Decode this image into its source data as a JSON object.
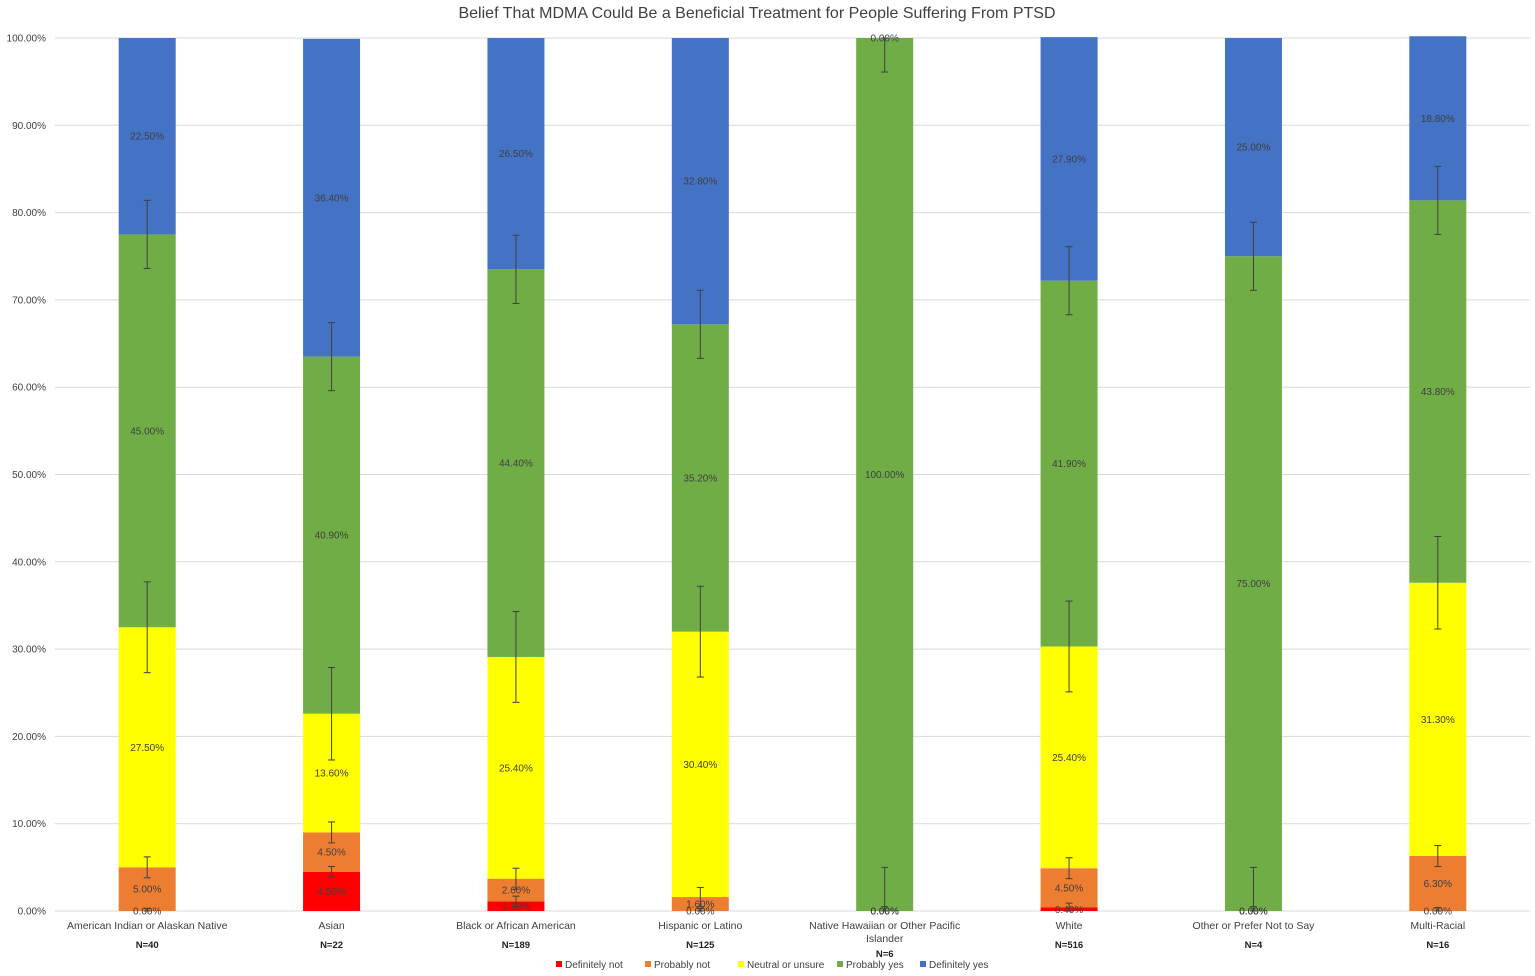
{
  "chart_data": {
    "type": "bar",
    "stacked": true,
    "title": "Belief That MDMA Could Be a Beneficial Treatment for People Suffering From PTSD",
    "xlabel": "",
    "ylabel": "",
    "ylim": [
      0,
      100
    ],
    "yticks": [
      0,
      10,
      20,
      30,
      40,
      50,
      60,
      70,
      80,
      90,
      100
    ],
    "ytick_labels": [
      "0.00%",
      "10.00%",
      "20.00%",
      "30.00%",
      "40.00%",
      "50.00%",
      "60.00%",
      "70.00%",
      "80.00%",
      "90.00%",
      "100.00%"
    ],
    "grid": true,
    "legend_position": "bottom",
    "categories": [
      "American Indian or Alaskan Native",
      "Asian",
      "Black or African American",
      "Hispanic or Latino",
      "Native Hawaiian or Other Pacific Islander",
      "White",
      "Other or Prefer Not to Say",
      "Multi-Racial"
    ],
    "category_label_lines": [
      [
        "American Indian or Alaskan Native"
      ],
      [
        "Asian"
      ],
      [
        "Black or African American"
      ],
      [
        "Hispanic or Latino"
      ],
      [
        "Native Hawaiian or Other Pacific",
        "Islander"
      ],
      [
        "White"
      ],
      [
        "Other or Prefer Not to Say"
      ],
      [
        "Multi-Racial"
      ]
    ],
    "n_labels": [
      "N=40",
      "N=22",
      "N=189",
      "N=125",
      "N=6",
      "N=516",
      "N=4",
      "N=16"
    ],
    "series": [
      {
        "name": "Definitely not",
        "color": "#ff0000",
        "values": [
          0.0,
          4.5,
          1.1,
          0.0,
          0.0,
          0.4,
          0.0,
          0.0
        ],
        "labels": [
          "0.00%",
          "4.50%",
          "1.10%",
          "0.00%",
          "0.00%",
          "0.40%",
          "0.00%",
          "0.00%"
        ],
        "error": [
          0.3,
          0.6,
          0.6,
          0.3,
          0.5,
          0.5,
          0.5,
          0.4
        ]
      },
      {
        "name": "Probably not",
        "color": "#ed7d31",
        "values": [
          5.0,
          4.5,
          2.6,
          1.6,
          0.0,
          4.5,
          0.0,
          6.3
        ],
        "labels": [
          "5.00%",
          "4.50%",
          "2.60%",
          "1.60%",
          "0.00%",
          "4.50%",
          "0.00%",
          "6.30%"
        ],
        "error": [
          1.2,
          1.2,
          1.2,
          1.1,
          5.0,
          1.2,
          5.0,
          1.2
        ]
      },
      {
        "name": "Neutral or unsure",
        "color": "#ffff00",
        "values": [
          27.5,
          13.6,
          25.4,
          30.4,
          0.0,
          25.4,
          0.0,
          31.3
        ],
        "labels": [
          "27.50%",
          "13.60%",
          "25.40%",
          "30.40%",
          "0.00%",
          "25.40%",
          "0.00%",
          "31.30%"
        ],
        "error": [
          5.2,
          5.3,
          5.2,
          5.2,
          0.0,
          5.2,
          0.0,
          5.3
        ]
      },
      {
        "name": "Probably yes",
        "color": "#70ad47",
        "values": [
          45.0,
          40.9,
          44.4,
          35.2,
          100.0,
          41.9,
          75.0,
          43.8
        ],
        "labels": [
          "45.00%",
          "40.90%",
          "44.40%",
          "35.20%",
          "100.00%",
          "41.90%",
          "75.00%",
          "43.80%"
        ],
        "error": [
          3.9,
          3.9,
          3.9,
          3.9,
          3.9,
          3.9,
          3.9,
          3.9
        ]
      },
      {
        "name": "Definitely yes",
        "color": "#4472c4",
        "values": [
          22.5,
          36.4,
          26.5,
          32.8,
          0.0,
          27.9,
          25.0,
          18.8
        ],
        "labels": [
          "22.50%",
          "36.40%",
          "26.50%",
          "32.80%",
          "0.00%",
          "27.90%",
          "25.00%",
          "18.80%"
        ],
        "error": [
          0,
          0,
          0,
          0,
          0,
          0,
          0,
          0
        ]
      }
    ]
  }
}
